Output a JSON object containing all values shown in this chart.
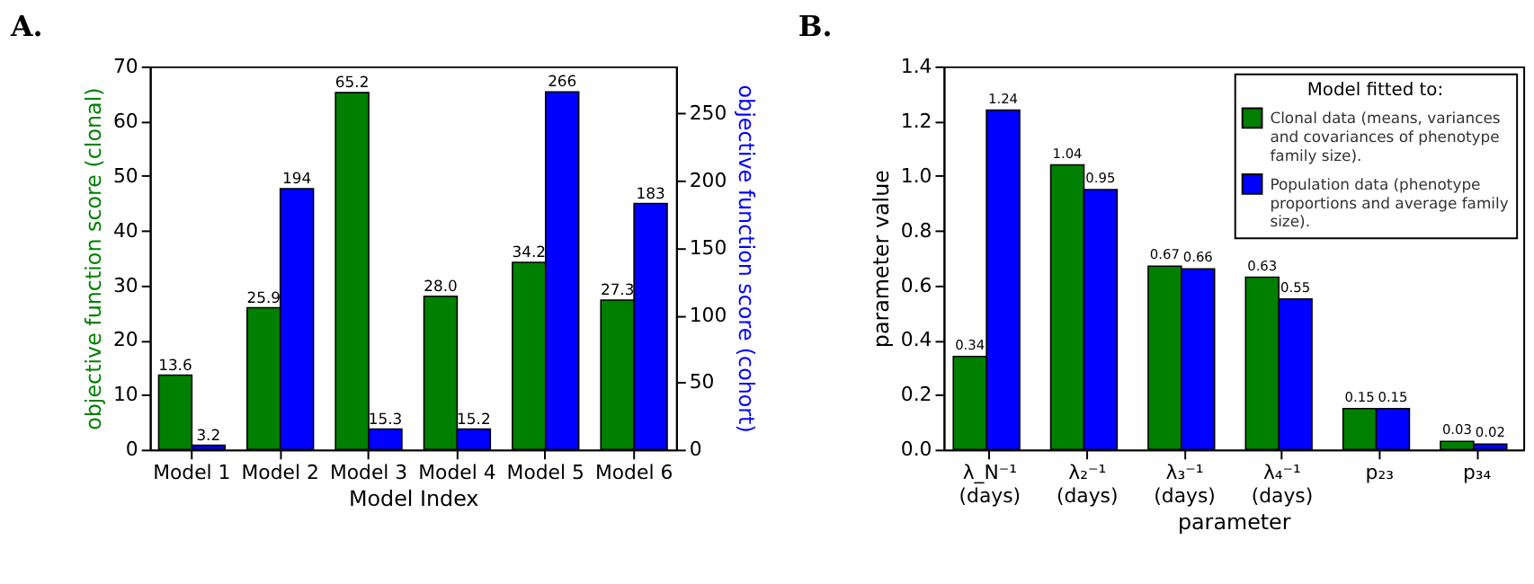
{
  "chart_data": [
    {
      "type": "bar",
      "title": "A.",
      "xlabel": "Model Index",
      "ylabel": "objective function score (clonal)",
      "y2label": "objective function score (cohort)",
      "categories": [
        "Model 1",
        "Model 2",
        "Model 3",
        "Model 4",
        "Model 5",
        "Model 6"
      ],
      "series": [
        {
          "color": "#008000",
          "values": [
            13.6,
            25.9,
            65.2,
            28,
            34.2,
            27.3
          ],
          "value_labels": [
            "13.6",
            "25.9",
            "65.2",
            "28.0",
            "34.2",
            "27.3"
          ]
        },
        {
          "color": "#0000ff",
          "axis": "y2",
          "values": [
            3.2,
            194,
            15.3,
            15.2,
            266,
            183
          ],
          "value_labels": [
            "3.2",
            "194",
            "15.3",
            "15.2",
            "266",
            "183"
          ]
        }
      ],
      "ylim": [
        0,
        70
      ],
      "yticks": [
        0,
        10,
        20,
        30,
        40,
        50,
        60,
        70
      ],
      "y2lim": [
        0,
        285
      ],
      "y2ticks": [
        0,
        50,
        100,
        150,
        200,
        250
      ],
      "grid": false
    },
    {
      "type": "bar",
      "title": "B.",
      "xlabel": "parameter",
      "ylabel": "parameter value",
      "legend_title": "Model fitted to:",
      "categories": [
        "λ_N⁻¹\n(days)",
        "λ₂⁻¹\n(days)",
        "λ₃⁻¹\n(days)",
        "λ₄⁻¹\n(days)",
        "p₂₃",
        "p₃₄"
      ],
      "series": [
        {
          "name": "Clonal data (means, variances and covariances of phenotype family size).",
          "color": "#008000",
          "values": [
            0.34,
            1.04,
            0.67,
            0.63,
            0.15,
            0.03
          ]
        },
        {
          "name": "Population data (phenotype proportions and average family size).",
          "color": "#0000ff",
          "values": [
            1.24,
            0.95,
            0.66,
            0.55,
            0.15,
            0.02
          ]
        }
      ],
      "ylim": [
        0,
        1.4
      ],
      "yticks": [
        {
          "value": 0,
          "label": "0.0"
        },
        0.2,
        0.4,
        0.6,
        0.8,
        {
          "value": 1,
          "label": "1.0"
        },
        1.2,
        1.4
      ],
      "data_labels": true,
      "grid": false,
      "legend": "top right"
    }
  ]
}
